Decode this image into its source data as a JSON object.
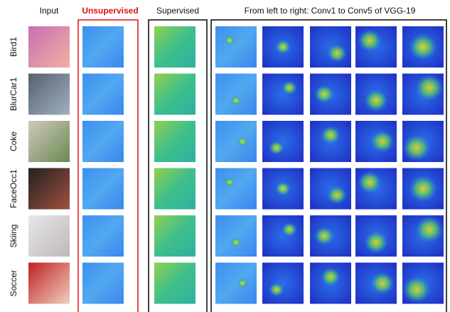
{
  "header": {
    "input": "Input",
    "unsupervised": "Unsupervised",
    "supervised": "Supervised",
    "conv": "From left to right: Conv1 to Conv5 of VGG-19"
  },
  "rows": [
    "Bird1",
    "BlurCar1",
    "Coke",
    "FaceOcc1",
    "Skiing",
    "Soccer"
  ]
}
